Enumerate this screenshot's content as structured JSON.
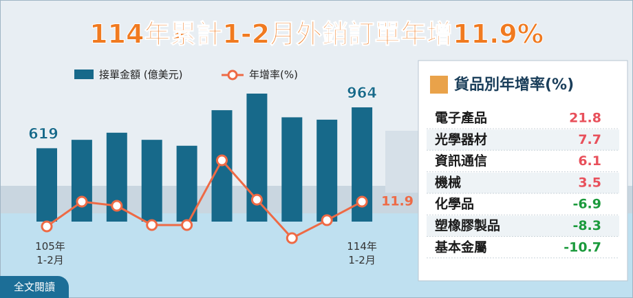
{
  "title": "114年累計1-2月外銷訂單年增11.9%",
  "chart_data": {
    "type": "bar-line",
    "categories": [
      "105年\n1-2月",
      null,
      null,
      null,
      null,
      null,
      null,
      null,
      null,
      "114年\n1-2月"
    ],
    "series": [
      {
        "name": "接單金額 (億美元)",
        "color": "#17698a",
        "type": "bar",
        "values": [
          619,
          690,
          750,
          690,
          640,
          940,
          1080,
          880,
          860,
          964
        ]
      },
      {
        "name": "年增率(%)",
        "color": "#ee6a45",
        "type": "line",
        "values": [
          -9.1,
          11.9,
          8.4,
          -7.9,
          -7.9,
          46.9,
          13.6,
          -19,
          -3.8,
          11.9
        ]
      }
    ]
  },
  "table": {
    "title": "貨品別年增率(%)",
    "rows": [
      [
        "電子產品",
        21.8
      ],
      [
        "光學器材",
        7.7
      ],
      [
        "資訊通信",
        6.1
      ],
      [
        "機械",
        3.5
      ],
      [
        "化學品",
        -6.9
      ],
      [
        "塑橡膠製品",
        -8.3
      ],
      [
        "基本金屬",
        -10.7
      ]
    ]
  },
  "button": "全文閱讀"
}
